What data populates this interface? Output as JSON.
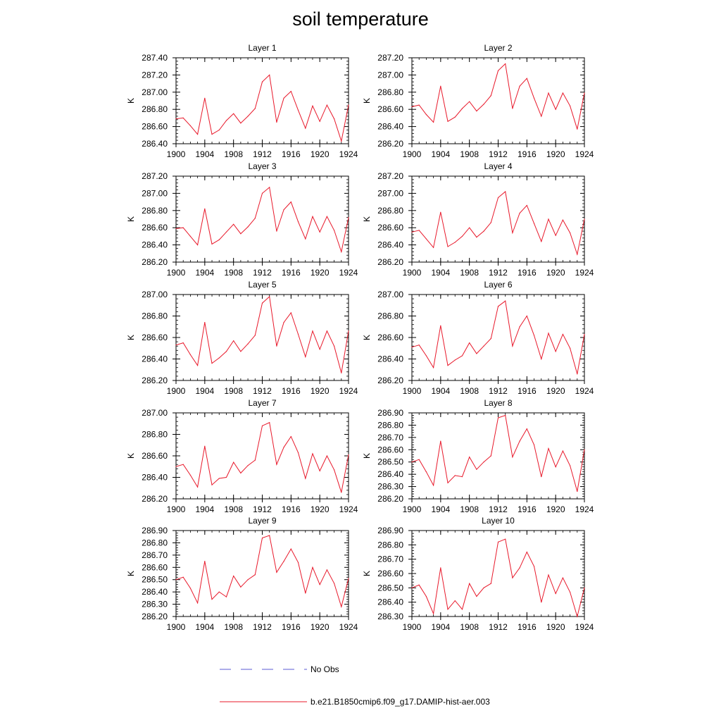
{
  "figure_title": "soil temperature",
  "legend": {
    "entries": [
      {
        "label": "No Obs",
        "color": "#5b5bd6",
        "style": "dashed"
      },
      {
        "label": "b.e21.B1850cmip6.f09_g17.DAMIP-hist-aer.003",
        "color": "#e8182a",
        "style": "solid"
      }
    ]
  },
  "chart_data": [
    {
      "type": "line",
      "title": "Layer 1",
      "ylabel": "K",
      "xlabel": "",
      "x": [
        1900,
        1901,
        1902,
        1903,
        1904,
        1905,
        1906,
        1907,
        1908,
        1909,
        1910,
        1911,
        1912,
        1913,
        1914,
        1915,
        1916,
        1917,
        1918,
        1919,
        1920,
        1921,
        1922,
        1923,
        1924
      ],
      "xlim": [
        1900,
        1924
      ],
      "xticks": [
        "1900",
        "1904",
        "1908",
        "1912",
        "1916",
        "1920",
        "1924"
      ],
      "ylim": [
        286.4,
        287.4
      ],
      "yticks": [
        "286.40",
        "286.60",
        "286.80",
        "287.00",
        "287.20",
        "287.40"
      ],
      "series": [
        {
          "name": "b.e21.B1850cmip6.f09_g17.DAMIP-hist-aer.003",
          "color": "#e8182a",
          "values": [
            286.69,
            286.7,
            286.61,
            286.51,
            286.93,
            286.51,
            286.56,
            286.67,
            286.75,
            286.64,
            286.72,
            286.81,
            287.12,
            287.2,
            286.65,
            286.93,
            287.01,
            286.79,
            286.58,
            286.84,
            286.66,
            286.85,
            286.69,
            286.43,
            286.85
          ]
        }
      ]
    },
    {
      "type": "line",
      "title": "Layer 2",
      "ylabel": "K",
      "xlabel": "",
      "x": [
        1900,
        1901,
        1902,
        1903,
        1904,
        1905,
        1906,
        1907,
        1908,
        1909,
        1910,
        1911,
        1912,
        1913,
        1914,
        1915,
        1916,
        1917,
        1918,
        1919,
        1920,
        1921,
        1922,
        1923,
        1924
      ],
      "xlim": [
        1900,
        1924
      ],
      "xticks": [
        "1900",
        "1904",
        "1908",
        "1912",
        "1916",
        "1920",
        "1924"
      ],
      "ylim": [
        286.2,
        287.2
      ],
      "yticks": [
        "286.20",
        "286.40",
        "286.60",
        "286.80",
        "287.00",
        "287.20"
      ],
      "series": [
        {
          "name": "b.e21.B1850cmip6.f09_g17.DAMIP-hist-aer.003",
          "color": "#e8182a",
          "values": [
            286.63,
            286.65,
            286.54,
            286.45,
            286.87,
            286.46,
            286.51,
            286.61,
            286.69,
            286.58,
            286.66,
            286.76,
            287.05,
            287.13,
            286.61,
            286.87,
            286.96,
            286.73,
            286.52,
            286.79,
            286.6,
            286.79,
            286.64,
            286.37,
            286.79
          ]
        }
      ]
    },
    {
      "type": "line",
      "title": "Layer 3",
      "ylabel": "K",
      "xlabel": "",
      "x": [
        1900,
        1901,
        1902,
        1903,
        1904,
        1905,
        1906,
        1907,
        1908,
        1909,
        1910,
        1911,
        1912,
        1913,
        1914,
        1915,
        1916,
        1917,
        1918,
        1919,
        1920,
        1921,
        1922,
        1923,
        1924
      ],
      "xlim": [
        1900,
        1924
      ],
      "xticks": [
        "1900",
        "1904",
        "1908",
        "1912",
        "1916",
        "1920",
        "1924"
      ],
      "ylim": [
        286.2,
        287.2
      ],
      "yticks": [
        "286.20",
        "286.40",
        "286.60",
        "286.80",
        "287.00",
        "287.20"
      ],
      "series": [
        {
          "name": "b.e21.B1850cmip6.f09_g17.DAMIP-hist-aer.003",
          "color": "#e8182a",
          "values": [
            286.59,
            286.6,
            286.5,
            286.4,
            286.82,
            286.41,
            286.46,
            286.55,
            286.64,
            286.53,
            286.61,
            286.71,
            287.0,
            287.07,
            286.56,
            286.81,
            286.9,
            286.67,
            286.47,
            286.73,
            286.55,
            286.73,
            286.57,
            286.32,
            286.72
          ]
        }
      ]
    },
    {
      "type": "line",
      "title": "Layer 4",
      "ylabel": "K",
      "xlabel": "",
      "x": [
        1900,
        1901,
        1902,
        1903,
        1904,
        1905,
        1906,
        1907,
        1908,
        1909,
        1910,
        1911,
        1912,
        1913,
        1914,
        1915,
        1916,
        1917,
        1918,
        1919,
        1920,
        1921,
        1922,
        1923,
        1924
      ],
      "xlim": [
        1900,
        1924
      ],
      "xticks": [
        "1900",
        "1904",
        "1908",
        "1912",
        "1916",
        "1920",
        "1924"
      ],
      "ylim": [
        286.2,
        287.2
      ],
      "yticks": [
        "286.20",
        "286.40",
        "286.60",
        "286.80",
        "287.00",
        "287.20"
      ],
      "series": [
        {
          "name": "b.e21.B1850cmip6.f09_g17.DAMIP-hist-aer.003",
          "color": "#e8182a",
          "values": [
            286.55,
            286.57,
            286.47,
            286.37,
            286.78,
            286.38,
            286.43,
            286.5,
            286.6,
            286.49,
            286.56,
            286.66,
            286.95,
            287.02,
            286.54,
            286.77,
            286.86,
            286.65,
            286.44,
            286.7,
            286.51,
            286.69,
            286.54,
            286.29,
            286.7
          ]
        }
      ]
    },
    {
      "type": "line",
      "title": "Layer 5",
      "ylabel": "K",
      "xlabel": "",
      "x": [
        1900,
        1901,
        1902,
        1903,
        1904,
        1905,
        1906,
        1907,
        1908,
        1909,
        1910,
        1911,
        1912,
        1913,
        1914,
        1915,
        1916,
        1917,
        1918,
        1919,
        1920,
        1921,
        1922,
        1923,
        1924
      ],
      "xlim": [
        1900,
        1924
      ],
      "xticks": [
        "1900",
        "1904",
        "1908",
        "1912",
        "1916",
        "1920",
        "1924"
      ],
      "ylim": [
        286.2,
        287.0
      ],
      "yticks": [
        "286.20",
        "286.40",
        "286.60",
        "286.80",
        "287.00"
      ],
      "series": [
        {
          "name": "b.e21.B1850cmip6.f09_g17.DAMIP-hist-aer.003",
          "color": "#e8182a",
          "values": [
            286.53,
            286.55,
            286.44,
            286.34,
            286.74,
            286.36,
            286.41,
            286.47,
            286.57,
            286.47,
            286.54,
            286.62,
            286.92,
            286.98,
            286.52,
            286.74,
            286.83,
            286.63,
            286.42,
            286.66,
            286.49,
            286.66,
            286.52,
            286.27,
            286.66
          ]
        }
      ]
    },
    {
      "type": "line",
      "title": "Layer 6",
      "ylabel": "K",
      "xlabel": "",
      "x": [
        1900,
        1901,
        1902,
        1903,
        1904,
        1905,
        1906,
        1907,
        1908,
        1909,
        1910,
        1911,
        1912,
        1913,
        1914,
        1915,
        1916,
        1917,
        1918,
        1919,
        1920,
        1921,
        1922,
        1923,
        1924
      ],
      "xlim": [
        1900,
        1924
      ],
      "xticks": [
        "1900",
        "1904",
        "1908",
        "1912",
        "1916",
        "1920",
        "1924"
      ],
      "ylim": [
        286.2,
        287.0
      ],
      "yticks": [
        "286.20",
        "286.40",
        "286.60",
        "286.80",
        "287.00"
      ],
      "series": [
        {
          "name": "b.e21.B1850cmip6.f09_g17.DAMIP-hist-aer.003",
          "color": "#e8182a",
          "values": [
            286.51,
            286.53,
            286.43,
            286.32,
            286.71,
            286.34,
            286.39,
            286.43,
            286.55,
            286.45,
            286.52,
            286.59,
            286.89,
            286.94,
            286.52,
            286.7,
            286.8,
            286.62,
            286.4,
            286.64,
            286.47,
            286.63,
            286.5,
            286.26,
            286.63
          ]
        }
      ]
    },
    {
      "type": "line",
      "title": "Layer 7",
      "ylabel": "K",
      "xlabel": "",
      "x": [
        1900,
        1901,
        1902,
        1903,
        1904,
        1905,
        1906,
        1907,
        1908,
        1909,
        1910,
        1911,
        1912,
        1913,
        1914,
        1915,
        1916,
        1917,
        1918,
        1919,
        1920,
        1921,
        1922,
        1923,
        1924
      ],
      "xlim": [
        1900,
        1924
      ],
      "xticks": [
        "1900",
        "1904",
        "1908",
        "1912",
        "1916",
        "1920",
        "1924"
      ],
      "ylim": [
        286.2,
        287.0
      ],
      "yticks": [
        "286.20",
        "286.40",
        "286.60",
        "286.80",
        "287.00"
      ],
      "series": [
        {
          "name": "b.e21.B1850cmip6.f09_g17.DAMIP-hist-aer.003",
          "color": "#e8182a",
          "values": [
            286.5,
            286.52,
            286.42,
            286.31,
            286.69,
            286.33,
            286.39,
            286.4,
            286.54,
            286.44,
            286.51,
            286.56,
            286.88,
            286.91,
            286.52,
            286.68,
            286.78,
            286.63,
            286.39,
            286.62,
            286.46,
            286.6,
            286.47,
            286.26,
            286.61
          ]
        }
      ]
    },
    {
      "type": "line",
      "title": "Layer 8",
      "ylabel": "K",
      "xlabel": "",
      "x": [
        1900,
        1901,
        1902,
        1903,
        1904,
        1905,
        1906,
        1907,
        1908,
        1909,
        1910,
        1911,
        1912,
        1913,
        1914,
        1915,
        1916,
        1917,
        1918,
        1919,
        1920,
        1921,
        1922,
        1923,
        1924
      ],
      "xlim": [
        1900,
        1924
      ],
      "xticks": [
        "1900",
        "1904",
        "1908",
        "1912",
        "1916",
        "1920",
        "1924"
      ],
      "ylim": [
        286.2,
        286.9
      ],
      "yticks": [
        "286.20",
        "286.30",
        "286.40",
        "286.50",
        "286.60",
        "286.70",
        "286.80",
        "286.90"
      ],
      "series": [
        {
          "name": "b.e21.B1850cmip6.f09_g17.DAMIP-hist-aer.003",
          "color": "#e8182a",
          "values": [
            286.5,
            286.52,
            286.42,
            286.31,
            286.67,
            286.33,
            286.39,
            286.38,
            286.54,
            286.44,
            286.5,
            286.55,
            286.86,
            286.88,
            286.54,
            286.67,
            286.77,
            286.64,
            286.38,
            286.61,
            286.46,
            286.59,
            286.47,
            286.26,
            286.6
          ]
        }
      ]
    },
    {
      "type": "line",
      "title": "Layer 9",
      "ylabel": "K",
      "xlabel": "",
      "x": [
        1900,
        1901,
        1902,
        1903,
        1904,
        1905,
        1906,
        1907,
        1908,
        1909,
        1910,
        1911,
        1912,
        1913,
        1914,
        1915,
        1916,
        1917,
        1918,
        1919,
        1920,
        1921,
        1922,
        1923,
        1924
      ],
      "xlim": [
        1900,
        1924
      ],
      "xticks": [
        "1900",
        "1904",
        "1908",
        "1912",
        "1916",
        "1920",
        "1924"
      ],
      "ylim": [
        286.2,
        286.9
      ],
      "yticks": [
        "286.20",
        "286.30",
        "286.40",
        "286.50",
        "286.60",
        "286.70",
        "286.80",
        "286.90"
      ],
      "series": [
        {
          "name": "b.e21.B1850cmip6.f09_g17.DAMIP-hist-aer.003",
          "color": "#e8182a",
          "values": [
            286.5,
            286.52,
            286.43,
            286.31,
            286.65,
            286.34,
            286.4,
            286.36,
            286.53,
            286.44,
            286.5,
            286.54,
            286.84,
            286.86,
            286.56,
            286.65,
            286.75,
            286.64,
            286.39,
            286.6,
            286.46,
            286.58,
            286.47,
            286.28,
            286.51
          ]
        }
      ]
    },
    {
      "type": "line",
      "title": "Layer 10",
      "ylabel": "K",
      "xlabel": "",
      "x": [
        1900,
        1901,
        1902,
        1903,
        1904,
        1905,
        1906,
        1907,
        1908,
        1909,
        1910,
        1911,
        1912,
        1913,
        1914,
        1915,
        1916,
        1917,
        1918,
        1919,
        1920,
        1921,
        1922,
        1923,
        1924
      ],
      "xlim": [
        1900,
        1924
      ],
      "xticks": [
        "1900",
        "1904",
        "1908",
        "1912",
        "1916",
        "1920",
        "1924"
      ],
      "ylim": [
        286.3,
        286.9
      ],
      "yticks": [
        "286.30",
        "286.40",
        "286.50",
        "286.60",
        "286.70",
        "286.80",
        "286.90"
      ],
      "series": [
        {
          "name": "b.e21.B1850cmip6.f09_g17.DAMIP-hist-aer.003",
          "color": "#e8182a",
          "values": [
            286.5,
            286.52,
            286.44,
            286.32,
            286.64,
            286.35,
            286.41,
            286.35,
            286.53,
            286.44,
            286.5,
            286.53,
            286.82,
            286.84,
            286.57,
            286.64,
            286.75,
            286.65,
            286.4,
            286.59,
            286.46,
            286.57,
            286.47,
            286.3,
            286.5
          ]
        }
      ]
    }
  ]
}
